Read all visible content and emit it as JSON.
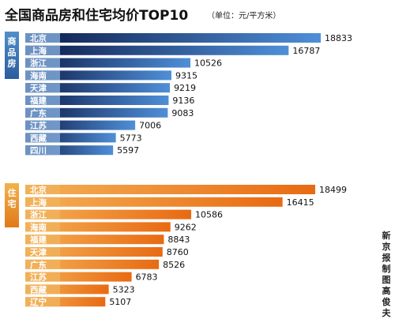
{
  "header": {
    "title": "全国商品房和住宅均价TOP10",
    "unit": "（单位：元/平方米）"
  },
  "credit_chars": [
    "新",
    "京",
    "报",
    "制",
    "图",
    "高",
    "俊",
    "夫"
  ],
  "colors": {
    "section1_bar_start": "#0d1c4a",
    "section1_bar_end": "#4f8fd8",
    "section2_bar_start": "#e86a12",
    "section2_bar_end": "#f5b055",
    "label_box_1": "#7ea7d6",
    "label_box_2": "#f0b25a"
  },
  "chart_data": [
    {
      "type": "bar",
      "orientation": "horizontal",
      "section_label_chars": [
        "商",
        "品",
        "房"
      ],
      "categories": [
        "北京",
        "上海",
        "浙江",
        "海南",
        "天津",
        "福建",
        "广东",
        "江苏",
        "西藏",
        "四川"
      ],
      "values": [
        18833,
        16787,
        10526,
        9315,
        9219,
        9136,
        9083,
        7006,
        5773,
        5597
      ],
      "xlim": [
        0,
        18833
      ]
    },
    {
      "type": "bar",
      "orientation": "horizontal",
      "section_label_chars": [
        "住",
        "宅"
      ],
      "categories": [
        "北京",
        "上海",
        "浙江",
        "海南",
        "福建",
        "天津",
        "广东",
        "江苏",
        "西藏",
        "辽宁"
      ],
      "values": [
        18499,
        16415,
        10586,
        9262,
        8843,
        8760,
        8526,
        6783,
        5323,
        5107
      ],
      "xlim": [
        0,
        18499
      ]
    }
  ]
}
